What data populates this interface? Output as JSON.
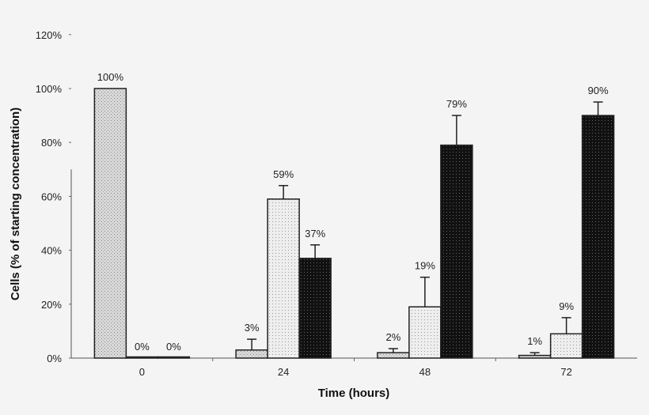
{
  "chart_data": {
    "type": "bar",
    "title": "",
    "xlabel": "Time (hours)",
    "ylabel": "Cells (% of starting concentration)",
    "ylim": [
      0,
      120
    ],
    "yticks": [
      "0%",
      "20%",
      "40%",
      "60%",
      "80%",
      "100%",
      "120%"
    ],
    "categories": [
      "0",
      "24",
      "48",
      "72"
    ],
    "grid": false,
    "legend": "none",
    "series": [
      {
        "values": [
          100,
          3,
          2,
          1
        ],
        "labels": [
          "100%",
          "3%",
          "2%",
          "1%"
        ],
        "error_upper": [
          100,
          7,
          3.5,
          2
        ],
        "color": "#c8c8c8"
      },
      {
        "values": [
          0,
          59,
          19,
          9
        ],
        "labels": [
          "0%",
          "59%",
          "19%",
          "9%"
        ],
        "error_upper": [
          0,
          64,
          30,
          15
        ],
        "color": "#e6e6e6"
      },
      {
        "values": [
          0,
          37,
          79,
          90
        ],
        "labels": [
          "0%",
          "37%",
          "79%",
          "90%"
        ],
        "error_upper": [
          0,
          42,
          90,
          95
        ],
        "color": "#1a1a1a"
      }
    ]
  }
}
